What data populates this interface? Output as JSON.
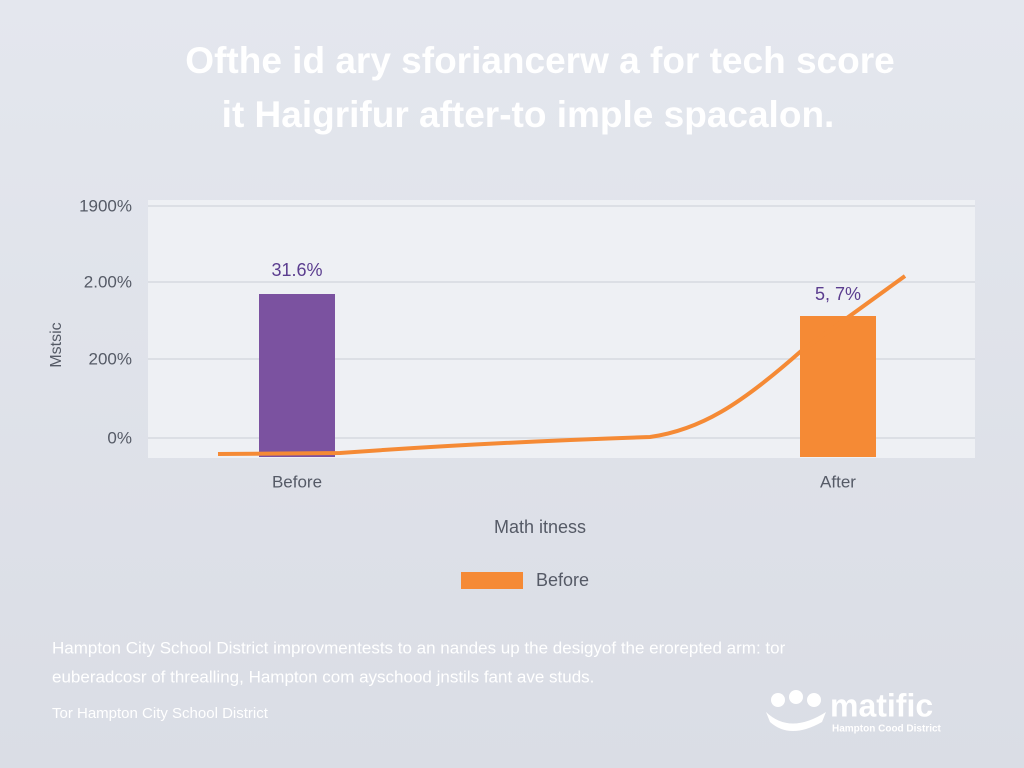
{
  "header": {
    "title_lines": [
      "Ofthe id ary sforiancerw a for tech score",
      "it Haigrifur after-to imple spacalon."
    ]
  },
  "chart": {
    "axis_labels": [
      "1900%",
      "2.00%",
      "200%",
      "0%"
    ],
    "y_axis_title": "Mstsic",
    "bar_labels": [
      "31.6%",
      "5, 7%"
    ],
    "categories": [
      "Before",
      "After"
    ],
    "x_axis_title": "Math itness",
    "legend": "Before"
  },
  "footer": {
    "lines": [
      "Hampton City School District improvmentests to an nandes up the desigyof the erorepted arm: tor",
      "euberadcosr of threalling, Hampton com ayschood jnstils fant ave studs."
    ],
    "credit": "Tor Hampton City School District"
  },
  "logo": {
    "name": "matific",
    "tagline": "Hampton Cood District"
  }
}
